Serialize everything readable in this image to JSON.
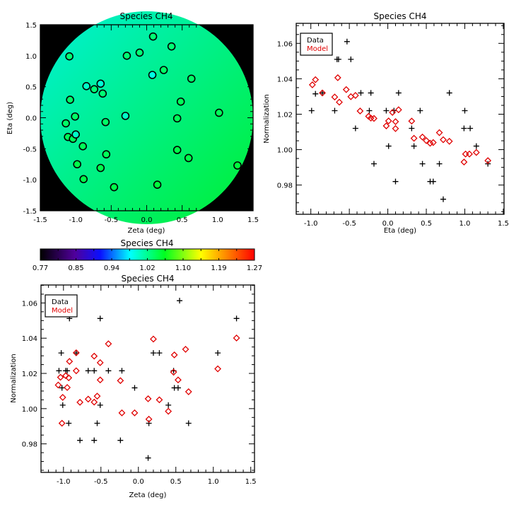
{
  "colors": {
    "data": "#000000",
    "model": "#e00000",
    "background": "#000000"
  },
  "colorbar": {
    "title": "Species CH4",
    "tick_labels": [
      "0.77",
      "0.85",
      "0.94",
      "1.02",
      "1.10",
      "1.19",
      "1.27"
    ],
    "range": [
      0.77,
      1.27
    ]
  },
  "chart_data": [
    {
      "type": "scatter",
      "title": "Species CH4",
      "xlabel": "Zeta (deg)",
      "ylabel": "Eta (deg)",
      "xlim": [
        -1.5,
        1.5
      ],
      "ylim": [
        -1.5,
        1.5
      ],
      "xticks": [
        "-1.5",
        "-1.0",
        "-0.5",
        "0.0",
        "0.5",
        "1.0",
        "1.5"
      ],
      "yticks": [
        "-1.5",
        "-1.0",
        "-0.5",
        "0.0",
        "0.5",
        "1.0",
        "1.5"
      ],
      "field_range": [
        1.0,
        1.06
      ],
      "points": [
        {
          "x": -1.09,
          "y": 0.99,
          "v": 1.03
        },
        {
          "x": 0.09,
          "y": 1.31,
          "v": 1.03
        },
        {
          "x": 0.35,
          "y": 1.15,
          "v": 1.03
        },
        {
          "x": -0.1,
          "y": 1.05,
          "v": 1.03
        },
        {
          "x": -0.28,
          "y": 1.0,
          "v": 1.03
        },
        {
          "x": 0.24,
          "y": 0.77,
          "v": 1.035
        },
        {
          "x": 0.08,
          "y": 0.69,
          "v": 0.99
        },
        {
          "x": 0.63,
          "y": 0.63,
          "v": 1.035
        },
        {
          "x": -0.85,
          "y": 0.51,
          "v": 1.0
        },
        {
          "x": -0.65,
          "y": 0.55,
          "v": 0.995
        },
        {
          "x": -0.74,
          "y": 0.46,
          "v": 1.03
        },
        {
          "x": -0.62,
          "y": 0.39,
          "v": 1.03
        },
        {
          "x": -1.08,
          "y": 0.29,
          "v": 1.035
        },
        {
          "x": 0.48,
          "y": 0.26,
          "v": 1.04
        },
        {
          "x": -1.01,
          "y": 0.02,
          "v": 1.035
        },
        {
          "x": -0.3,
          "y": 0.03,
          "v": 1.0
        },
        {
          "x": 1.02,
          "y": 0.08,
          "v": 1.04
        },
        {
          "x": -1.14,
          "y": -0.09,
          "v": 1.035
        },
        {
          "x": -0.58,
          "y": -0.07,
          "v": 1.035
        },
        {
          "x": 0.43,
          "y": -0.01,
          "v": 1.04
        },
        {
          "x": -1.11,
          "y": -0.31,
          "v": 1.04
        },
        {
          "x": -1.04,
          "y": -0.34,
          "v": 1.04
        },
        {
          "x": -1.0,
          "y": -0.27,
          "v": 1.0
        },
        {
          "x": -0.9,
          "y": -0.46,
          "v": 1.04
        },
        {
          "x": -0.57,
          "y": -0.59,
          "v": 1.04
        },
        {
          "x": 0.43,
          "y": -0.52,
          "v": 1.045
        },
        {
          "x": 0.59,
          "y": -0.65,
          "v": 1.045
        },
        {
          "x": -0.98,
          "y": -0.75,
          "v": 1.045
        },
        {
          "x": -0.65,
          "y": -0.81,
          "v": 1.045
        },
        {
          "x": 1.28,
          "y": -0.77,
          "v": 1.05
        },
        {
          "x": -0.89,
          "y": -0.99,
          "v": 1.045
        },
        {
          "x": -0.46,
          "y": -1.12,
          "v": 1.045
        },
        {
          "x": 0.15,
          "y": -1.08,
          "v": 1.05
        }
      ]
    },
    {
      "type": "scatter",
      "title": "Species CH4",
      "xlabel": "Eta (deg)",
      "ylabel": "Normalization",
      "xlim": [
        -1.19,
        1.51
      ],
      "ylim": [
        0.9635,
        1.0713
      ],
      "xticks": [
        "-1.0",
        "-0.5",
        "0.0",
        "0.5",
        "1.0",
        "1.5"
      ],
      "yticks": [
        "0.98",
        "1.00",
        "1.02",
        "1.04",
        "1.06"
      ],
      "legend": {
        "position": "top-left",
        "entries": [
          "Data",
          "Model"
        ]
      },
      "series": [
        {
          "name": "Data",
          "marker": "plus",
          "points": [
            [
              -0.99,
              1.022
            ],
            [
              -0.94,
              1.0315
            ],
            [
              -0.85,
              1.032
            ],
            [
              -0.69,
              1.022
            ],
            [
              -0.66,
              1.051
            ],
            [
              -0.64,
              1.051
            ],
            [
              -0.53,
              1.061
            ],
            [
              -0.48,
              1.051
            ],
            [
              -0.42,
              1.012
            ],
            [
              -0.35,
              1.032
            ],
            [
              -0.24,
              1.022
            ],
            [
              -0.22,
              1.032
            ],
            [
              -0.18,
              0.992
            ],
            [
              -0.02,
              1.022
            ],
            [
              0.01,
              1.002
            ],
            [
              0.08,
              1.022
            ],
            [
              0.1,
              0.982
            ],
            [
              0.14,
              1.032
            ],
            [
              0.31,
              1.012
            ],
            [
              0.34,
              1.002
            ],
            [
              0.42,
              1.022
            ],
            [
              0.45,
              0.992
            ],
            [
              0.55,
              0.982
            ],
            [
              0.59,
              0.982
            ],
            [
              0.67,
              0.992
            ],
            [
              0.72,
              0.972
            ],
            [
              0.8,
              1.032
            ],
            [
              1.0,
              1.022
            ],
            [
              0.99,
              1.012
            ],
            [
              1.07,
              1.012
            ],
            [
              1.15,
              1.002
            ],
            [
              1.3,
              0.992
            ]
          ]
        },
        {
          "name": "Model",
          "marker": "diamond",
          "points": [
            [
              -0.98,
              1.0366
            ],
            [
              -0.94,
              1.0395
            ],
            [
              -0.85,
              1.032
            ],
            [
              -0.69,
              1.0297
            ],
            [
              -0.65,
              1.0406
            ],
            [
              -0.63,
              1.0268
            ],
            [
              -0.54,
              1.0339
            ],
            [
              -0.48,
              1.0299
            ],
            [
              -0.42,
              1.0306
            ],
            [
              -0.36,
              1.0218
            ],
            [
              -0.25,
              1.0188
            ],
            [
              -0.22,
              1.0178
            ],
            [
              -0.18,
              1.0176
            ],
            [
              -0.02,
              1.0134
            ],
            [
              0.01,
              1.0162
            ],
            [
              0.06,
              1.021
            ],
            [
              0.1,
              1.0119
            ],
            [
              0.1,
              1.0158
            ],
            [
              0.14,
              1.0225
            ],
            [
              0.31,
              1.0161
            ],
            [
              0.34,
              1.0064
            ],
            [
              0.45,
              1.0071
            ],
            [
              0.5,
              1.0051
            ],
            [
              0.55,
              1.0036
            ],
            [
              0.59,
              1.004
            ],
            [
              0.67,
              1.0096
            ],
            [
              0.72,
              1.0056
            ],
            [
              0.8,
              1.0047
            ],
            [
              0.99,
              0.993
            ],
            [
              1.01,
              0.9975
            ],
            [
              1.06,
              0.9975
            ],
            [
              1.15,
              0.9984
            ],
            [
              1.3,
              0.9938
            ]
          ]
        }
      ]
    },
    {
      "type": "scatter",
      "title": "Species CH4",
      "xlabel": "Zeta (deg)",
      "ylabel": "Normalization",
      "xlim": [
        -1.3,
        1.55
      ],
      "ylim": [
        0.9638,
        1.0702
      ],
      "xticks": [
        "-1.0",
        "-0.5",
        "0.0",
        "0.5",
        "1.0",
        "1.5"
      ],
      "yticks": [
        "0.98",
        "1.00",
        "1.02",
        "1.04",
        "1.06"
      ],
      "legend": {
        "position": "top-left",
        "entries": [
          "Data",
          "Model"
        ]
      },
      "series": [
        {
          "name": "Data",
          "marker": "plus",
          "points": [
            [
              -1.06,
              1.0215
            ],
            [
              -1.03,
              1.0316
            ],
            [
              -1.02,
              1.0118
            ],
            [
              -1.01,
              1.002
            ],
            [
              -0.97,
              1.0215
            ],
            [
              -0.95,
              1.0215
            ],
            [
              -0.93,
              0.9917
            ],
            [
              -0.92,
              1.0512
            ],
            [
              -0.83,
              1.0316
            ],
            [
              -0.78,
              0.982
            ],
            [
              -0.67,
              1.0215
            ],
            [
              -0.59,
              1.0215
            ],
            [
              -0.59,
              0.982
            ],
            [
              -0.55,
              0.9917
            ],
            [
              -0.51,
              1.002
            ],
            [
              -0.51,
              1.0512
            ],
            [
              -0.4,
              1.0215
            ],
            [
              -0.24,
              0.982
            ],
            [
              -0.22,
              1.0215
            ],
            [
              -0.05,
              1.0118
            ],
            [
              0.13,
              0.972
            ],
            [
              0.14,
              0.9917
            ],
            [
              0.2,
              1.0316
            ],
            [
              0.28,
              1.0316
            ],
            [
              0.4,
              1.002
            ],
            [
              0.47,
              1.0215
            ],
            [
              0.48,
              1.0118
            ],
            [
              0.53,
              1.0118
            ],
            [
              0.55,
              1.0613
            ],
            [
              0.67,
              0.9917
            ],
            [
              1.06,
              1.0316
            ],
            [
              1.31,
              1.0512
            ]
          ]
        },
        {
          "name": "Model",
          "marker": "diamond",
          "points": [
            [
              -1.07,
              1.0134
            ],
            [
              -1.04,
              1.0178
            ],
            [
              -1.02,
              0.9917
            ],
            [
              -1.01,
              1.0064
            ],
            [
              -0.97,
              1.0187
            ],
            [
              -0.95,
              1.012
            ],
            [
              -0.93,
              1.0175
            ],
            [
              -0.92,
              1.0268
            ],
            [
              -0.83,
              1.0317
            ],
            [
              -0.83,
              1.0215
            ],
            [
              -0.78,
              1.0036
            ],
            [
              -0.67,
              1.0054
            ],
            [
              -0.59,
              1.0298
            ],
            [
              -0.59,
              1.0037
            ],
            [
              -0.55,
              1.0071
            ],
            [
              -0.51,
              1.0261
            ],
            [
              -0.51,
              1.0163
            ],
            [
              -0.4,
              1.0368
            ],
            [
              -0.24,
              1.0159
            ],
            [
              -0.22,
              0.9976
            ],
            [
              -0.05,
              0.9976
            ],
            [
              0.13,
              1.0056
            ],
            [
              0.14,
              0.994
            ],
            [
              0.2,
              1.0395
            ],
            [
              0.28,
              1.005
            ],
            [
              0.4,
              0.9985
            ],
            [
              0.47,
              1.0207
            ],
            [
              0.48,
              1.0305
            ],
            [
              0.53,
              1.0163
            ],
            [
              0.63,
              1.0337
            ],
            [
              0.67,
              1.0096
            ],
            [
              1.06,
              1.0226
            ],
            [
              1.31,
              1.0401
            ]
          ]
        }
      ]
    }
  ]
}
